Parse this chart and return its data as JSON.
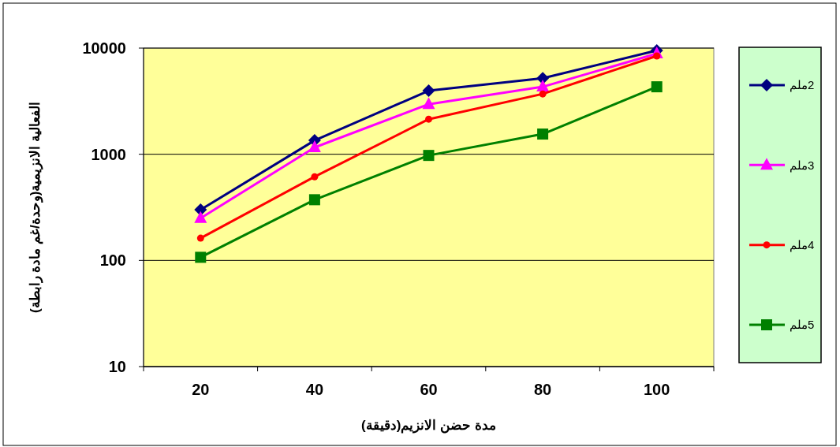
{
  "chart_data": {
    "type": "line",
    "xlabel": "مدة حضن الانزيم(دقيقة)",
    "ylabel": "الفعالية الانزيمية(وحدة/غم مادة رابطة)",
    "categories": [
      "20",
      "40",
      "60",
      "80",
      "100"
    ],
    "series": [
      {
        "name": "2ملم",
        "color": "#000080",
        "marker": "diamond",
        "values": [
          300,
          1350,
          3970,
          5200,
          9500
        ]
      },
      {
        "name": "3ملم",
        "color": "#ff00ff",
        "marker": "triangle",
        "values": [
          250,
          1160,
          2960,
          4320,
          8870
        ]
      },
      {
        "name": "4ملم",
        "color": "#ff0000",
        "marker": "circle",
        "values": [
          162,
          614,
          2140,
          3700,
          8430
        ]
      },
      {
        "name": "5ملم",
        "color": "#008000",
        "marker": "square",
        "values": [
          107,
          373,
          975,
          1550,
          4320
        ]
      }
    ],
    "log": true,
    "ylim": [
      10,
      10000
    ],
    "yticks": [
      10,
      100,
      1000,
      10000
    ],
    "grid": "y",
    "legend": "right"
  }
}
